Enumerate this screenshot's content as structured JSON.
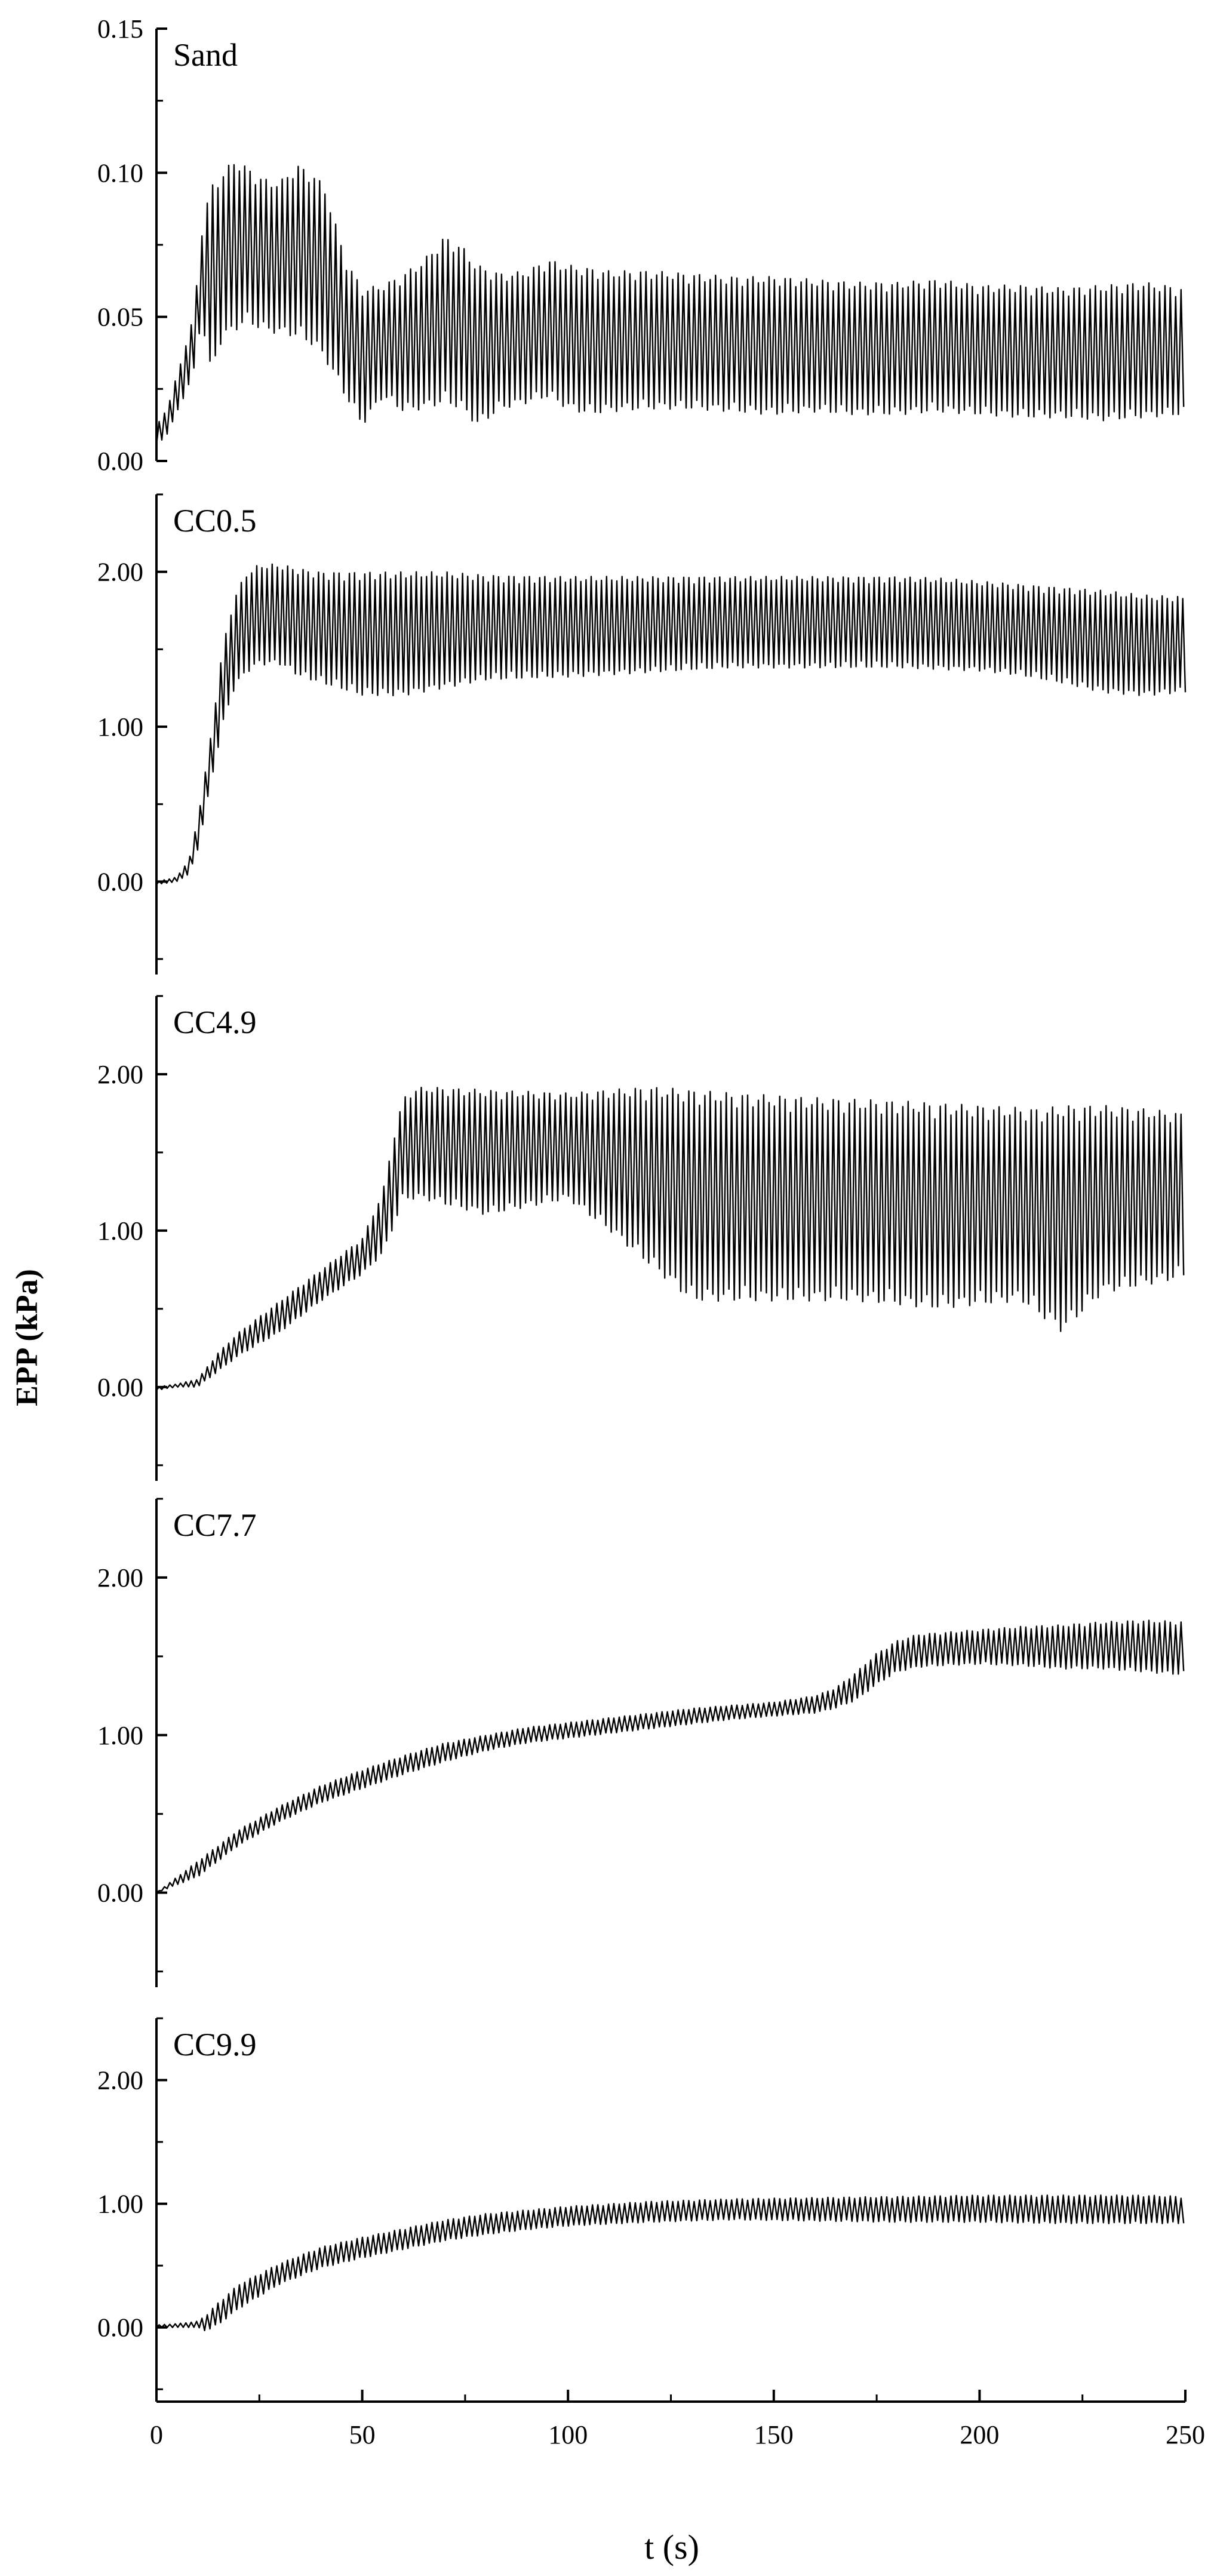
{
  "chart_data": {
    "type": "line",
    "xlabel": "t (s)",
    "ylabel": "EPP (kPa)",
    "xlim": [
      0,
      250
    ],
    "xticks": [
      "0",
      "50",
      "100",
      "150",
      "200",
      "250"
    ],
    "grid": false,
    "legend": "none",
    "colors": {
      "line": "#000000",
      "axis": "#000000",
      "background": "#ffffff"
    },
    "panels": [
      {
        "name": "Sand",
        "ylim": [
          0,
          0.15
        ],
        "yticks": [
          "0.00",
          "0.05",
          "0.10",
          "0.15"
        ],
        "oscillation": {
          "period_s": 1.3
        },
        "series": [
          {
            "name": "upper envelope",
            "x": [
              0,
              3,
              6,
              9,
              11,
              13,
              16,
              19,
              22,
              26,
              30,
              34,
              38,
              41,
              43,
              46,
              50,
              55,
              60,
              65,
              70,
              74,
              78,
              84,
              90,
              95,
              100,
              105,
              110,
              120,
              130,
              140,
              150,
              160,
              170,
              180,
              190,
              200,
              210,
              220,
              230,
              240,
              250
            ],
            "y": [
              0.012,
              0.02,
              0.035,
              0.05,
              0.08,
              0.095,
              0.1,
              0.105,
              0.102,
              0.098,
              0.097,
              0.103,
              0.1,
              0.095,
              0.085,
              0.07,
              0.06,
              0.061,
              0.065,
              0.07,
              0.078,
              0.075,
              0.068,
              0.065,
              0.066,
              0.07,
              0.068,
              0.067,
              0.066,
              0.066,
              0.065,
              0.064,
              0.064,
              0.063,
              0.062,
              0.062,
              0.063,
              0.061,
              0.061,
              0.06,
              0.061,
              0.062,
              0.06
            ]
          },
          {
            "name": "lower envelope",
            "x": [
              0,
              3,
              6,
              9,
              11,
              13,
              16,
              19,
              22,
              26,
              30,
              34,
              38,
              41,
              43,
              46,
              50,
              55,
              60,
              65,
              70,
              74,
              78,
              84,
              90,
              95,
              100,
              105,
              110,
              120,
              130,
              140,
              150,
              160,
              170,
              180,
              190,
              200,
              210,
              220,
              230,
              240,
              250
            ],
            "y": [
              0.005,
              0.01,
              0.02,
              0.03,
              0.05,
              0.03,
              0.042,
              0.045,
              0.048,
              0.045,
              0.044,
              0.043,
              0.04,
              0.035,
              0.03,
              0.022,
              0.012,
              0.022,
              0.017,
              0.018,
              0.02,
              0.018,
              0.012,
              0.018,
              0.02,
              0.022,
              0.018,
              0.016,
              0.017,
              0.018,
              0.018,
              0.017,
              0.016,
              0.017,
              0.016,
              0.016,
              0.017,
              0.016,
              0.015,
              0.015,
              0.014,
              0.015,
              0.016
            ]
          }
        ]
      },
      {
        "name": "CC0.5",
        "ylim": [
          -0.6,
          2.5
        ],
        "yticks": [
          "0.00",
          "1.00",
          "2.00"
        ],
        "oscillation": {
          "period_s": 1.25
        },
        "series": [
          {
            "name": "upper envelope",
            "x": [
              0,
              5,
              8,
              10,
              13,
              16,
              19,
              22,
              25,
              30,
              35,
              40,
              50,
              60,
              70,
              80,
              100,
              120,
              140,
              160,
              180,
              190,
              200,
              210,
              220,
              230,
              240,
              250
            ],
            "y": [
              0.0,
              0.03,
              0.15,
              0.4,
              0.9,
              1.5,
              1.85,
              2.0,
              2.05,
              2.05,
              2.02,
              2.0,
              2.0,
              2.0,
              2.0,
              1.98,
              1.97,
              1.97,
              1.97,
              1.97,
              1.97,
              1.96,
              1.94,
              1.92,
              1.9,
              1.88,
              1.85,
              1.84
            ]
          },
          {
            "name": "lower envelope",
            "x": [
              0,
              5,
              8,
              10,
              13,
              16,
              19,
              22,
              25,
              30,
              35,
              40,
              50,
              60,
              70,
              80,
              100,
              120,
              140,
              160,
              180,
              190,
              200,
              210,
              220,
              230,
              240,
              250
            ],
            "y": [
              -0.02,
              0.0,
              0.05,
              0.2,
              0.6,
              1.0,
              1.25,
              1.35,
              1.4,
              1.4,
              1.32,
              1.28,
              1.2,
              1.2,
              1.25,
              1.3,
              1.32,
              1.35,
              1.38,
              1.38,
              1.38,
              1.37,
              1.36,
              1.33,
              1.28,
              1.22,
              1.2,
              1.22
            ]
          }
        ]
      },
      {
        "name": "CC4.9",
        "ylim": [
          -0.6,
          2.5
        ],
        "yticks": [
          "0.00",
          "1.00",
          "2.00"
        ],
        "oscillation": {
          "period_s": 1.3
        },
        "series": [
          {
            "name": "upper envelope",
            "x": [
              0,
              5,
              10,
              15,
              20,
              30,
              40,
              50,
              55,
              58,
              60,
              62,
              65,
              80,
              100,
              120,
              140,
              160,
              180,
              200,
              215,
              220,
              230,
              240,
              250
            ],
            "y": [
              0.0,
              0.02,
              0.05,
              0.22,
              0.35,
              0.55,
              0.75,
              0.95,
              1.25,
              1.65,
              1.85,
              1.9,
              1.92,
              1.9,
              1.88,
              1.92,
              1.88,
              1.85,
              1.83,
              1.8,
              1.78,
              1.8,
              1.8,
              1.78,
              1.75
            ]
          },
          {
            "name": "lower envelope",
            "x": [
              0,
              5,
              10,
              15,
              20,
              30,
              40,
              50,
              55,
              58,
              60,
              62,
              65,
              80,
              100,
              110,
              130,
              150,
              170,
              190,
              210,
              220,
              230,
              240,
              250
            ],
            "y": [
              -0.02,
              0.0,
              0.0,
              0.1,
              0.2,
              0.35,
              0.55,
              0.72,
              0.85,
              1.05,
              1.2,
              1.2,
              1.2,
              1.1,
              1.2,
              1.0,
              0.55,
              0.55,
              0.55,
              0.5,
              0.55,
              0.35,
              0.6,
              0.65,
              0.7
            ]
          }
        ]
      },
      {
        "name": "CC7.7",
        "ylim": [
          -0.6,
          2.5
        ],
        "yticks": [
          "0.00",
          "1.00",
          "2.00"
        ],
        "oscillation": {
          "period_s": 1.3
        },
        "series": [
          {
            "name": "upper envelope",
            "x": [
              0,
              10,
              20,
              30,
              40,
              50,
              60,
              70,
              80,
              90,
              100,
              110,
              120,
              130,
              140,
              150,
              160,
              165,
              170,
              175,
              180,
              185,
              190,
              200,
              210,
              220,
              230,
              240,
              250
            ],
            "y": [
              0.0,
              0.2,
              0.4,
              0.55,
              0.68,
              0.78,
              0.87,
              0.95,
              1.0,
              1.05,
              1.08,
              1.11,
              1.14,
              1.17,
              1.19,
              1.21,
              1.25,
              1.3,
              1.4,
              1.52,
              1.6,
              1.64,
              1.65,
              1.67,
              1.69,
              1.7,
              1.72,
              1.73,
              1.72
            ]
          },
          {
            "name": "lower envelope",
            "x": [
              0,
              10,
              20,
              30,
              40,
              50,
              60,
              70,
              80,
              90,
              100,
              110,
              120,
              130,
              140,
              150,
              160,
              165,
              170,
              175,
              180,
              185,
              190,
              200,
              210,
              220,
              230,
              240,
              250
            ],
            "y": [
              0.0,
              0.1,
              0.3,
              0.45,
              0.57,
              0.66,
              0.75,
              0.83,
              0.9,
              0.95,
              0.98,
              1.01,
              1.04,
              1.07,
              1.1,
              1.12,
              1.14,
              1.17,
              1.22,
              1.32,
              1.4,
              1.43,
              1.44,
              1.45,
              1.44,
              1.42,
              1.42,
              1.4,
              1.38
            ]
          }
        ]
      },
      {
        "name": "CC9.9",
        "ylim": [
          -0.6,
          2.5
        ],
        "yticks": [
          "0.00",
          "1.00",
          "2.00"
        ],
        "oscillation": {
          "period_s": 1.3
        },
        "series": [
          {
            "name": "upper envelope",
            "x": [
              0,
              5,
              10,
              12,
              15,
              20,
              30,
              40,
              50,
              60,
              70,
              80,
              90,
              100,
              120,
              140,
              160,
              180,
              200,
              220,
              240,
              250
            ],
            "y": [
              0.02,
              0.03,
              0.05,
              0.1,
              0.2,
              0.35,
              0.52,
              0.65,
              0.73,
              0.8,
              0.87,
              0.92,
              0.95,
              0.98,
              1.02,
              1.04,
              1.05,
              1.06,
              1.07,
              1.07,
              1.07,
              1.06
            ]
          },
          {
            "name": "lower envelope",
            "x": [
              0,
              5,
              10,
              12,
              15,
              20,
              30,
              40,
              50,
              60,
              70,
              80,
              90,
              100,
              120,
              140,
              160,
              180,
              200,
              220,
              240,
              250
            ],
            "y": [
              0.0,
              0.0,
              0.0,
              -0.03,
              0.02,
              0.15,
              0.35,
              0.48,
              0.56,
              0.63,
              0.7,
              0.75,
              0.79,
              0.82,
              0.85,
              0.87,
              0.86,
              0.85,
              0.85,
              0.84,
              0.84,
              0.84
            ]
          }
        ]
      }
    ]
  }
}
